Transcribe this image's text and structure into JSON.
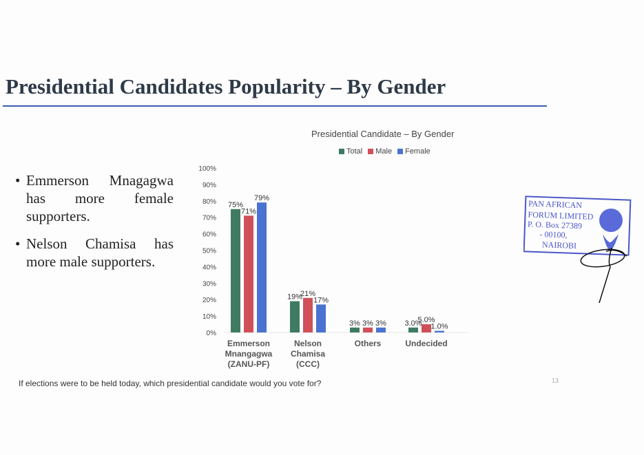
{
  "slide": {
    "title": "Presidential Candidates Popularity – By Gender",
    "bullets": [
      "Emmerson Mnagagwa has more female supporters.",
      "Nelson Chamisa has more male supporters."
    ],
    "question": "If elections were to be held today, which presidential candidate would you vote for?",
    "page_number": "13"
  },
  "stamp": {
    "lines": [
      "PAN AFRICAN",
      "FORUM LIMITED",
      "P. O. Box 27389",
      "- 00100,",
      "NAIROBI"
    ],
    "color": "#4a56c8"
  },
  "chart_data": {
    "type": "bar",
    "title": "Presidential Candidate – By Gender",
    "categories": [
      [
        "Emmerson",
        "Mnangagwa",
        "(ZANU-PF)"
      ],
      [
        "Nelson",
        "Chamisa",
        "(CCC)"
      ],
      [
        "Others"
      ],
      [
        "Undecided"
      ]
    ],
    "series": [
      {
        "name": "Total",
        "color": "#3f7b63",
        "values": [
          75,
          19,
          3,
          3.0
        ],
        "labels": [
          "75%",
          "19%",
          "3%",
          "3.0%"
        ]
      },
      {
        "name": "Male",
        "color": "#d0505a",
        "values": [
          71,
          21,
          3,
          5.0
        ],
        "labels": [
          "71%",
          "21%",
          "3%",
          "5.0%"
        ]
      },
      {
        "name": "Female",
        "color": "#4a72d0",
        "values": [
          79,
          17,
          3,
          1.0
        ],
        "labels": [
          "79%",
          "17%",
          "3%",
          "1.0%"
        ]
      }
    ],
    "yticks": [
      "0%",
      "10%",
      "20%",
      "30%",
      "40%",
      "50%",
      "60%",
      "70%",
      "80%",
      "90%",
      "100%"
    ],
    "ylim": [
      0,
      100
    ],
    "xlabel": "",
    "ylabel": "",
    "legend_position": "top",
    "grid": false
  }
}
